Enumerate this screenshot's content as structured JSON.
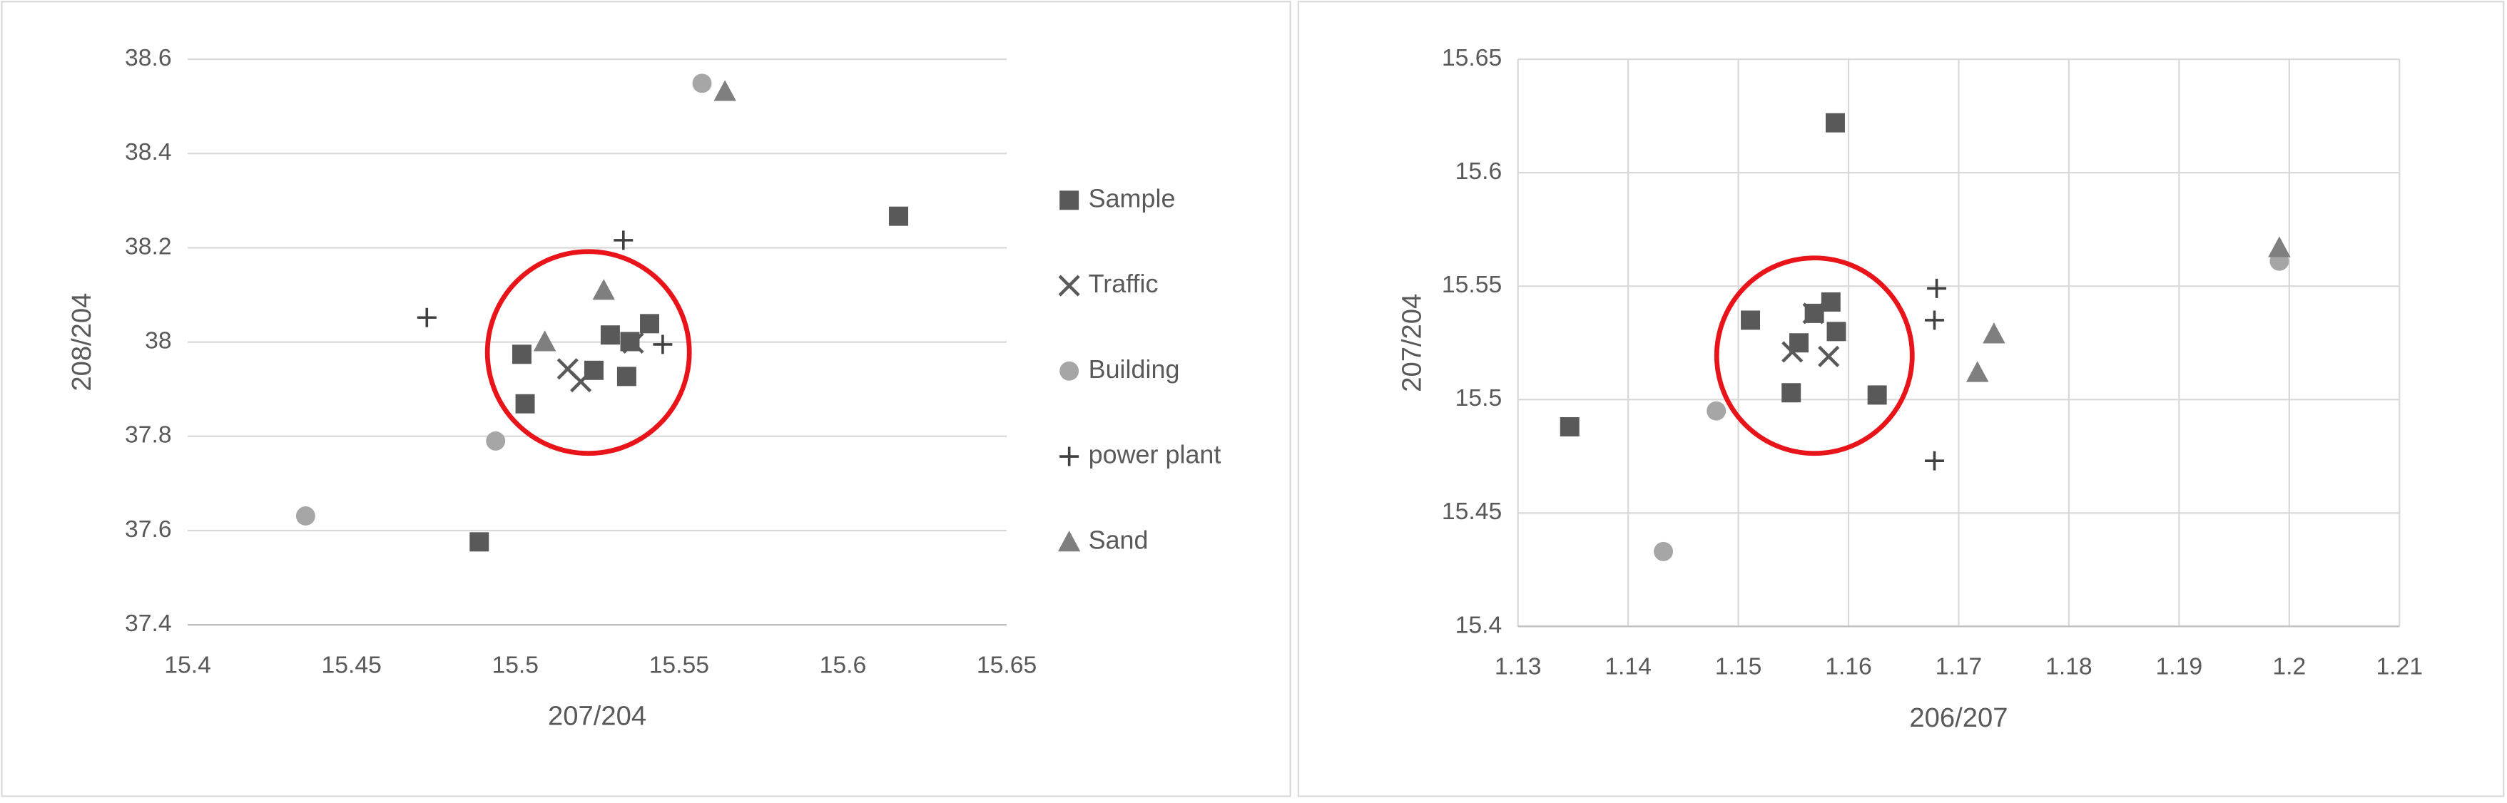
{
  "chart_data": [
    {
      "type": "scatter",
      "x_label": "207/204",
      "y_label": "208/204",
      "xlim": [
        15.4,
        15.65
      ],
      "xticks": [
        15.4,
        15.45,
        15.5,
        15.55,
        15.6,
        15.65
      ],
      "ylim": [
        37.4,
        38.6
      ],
      "yticks": [
        37.4,
        37.6,
        37.8,
        38,
        38.2,
        38.4,
        38.6
      ],
      "xgrid": false,
      "ygrid": true,
      "legend": "right",
      "series": [
        {
          "name": "Sample",
          "marker": "square",
          "color": "#595959",
          "x": [
            15.502,
            15.503,
            15.489,
            15.529,
            15.535,
            15.541,
            15.524,
            15.534,
            15.617
          ],
          "values": [
            37.974,
            37.869,
            37.576,
            38.015,
            38.001,
            38.039,
            37.94,
            37.927,
            38.267
          ]
        },
        {
          "name": "Traffic",
          "marker": "x",
          "color": "#595959",
          "x": [
            15.516,
            15.52,
            15.536
          ],
          "values": [
            37.943,
            37.916,
            37.998
          ]
        },
        {
          "name": "Building",
          "marker": "circle",
          "color": "#a6a6a6",
          "x": [
            15.557,
            15.494,
            15.436
          ],
          "values": [
            38.549,
            37.79,
            37.631
          ]
        },
        {
          "name": "power plant",
          "marker": "plus",
          "color": "#404040",
          "x": [
            15.473,
            15.533,
            15.545
          ],
          "values": [
            38.052,
            38.216,
            37.995
          ]
        },
        {
          "name": "Sand",
          "marker": "triangle",
          "color": "#7f7f7f",
          "x": [
            15.564,
            15.527,
            15.509
          ],
          "values": [
            38.532,
            38.11,
            38.001
          ]
        }
      ]
    },
    {
      "type": "scatter",
      "x_label": "206/207",
      "y_label": "207/204",
      "xlim": [
        1.13,
        1.21
      ],
      "xticks": [
        1.13,
        1.14,
        1.15,
        1.16,
        1.17,
        1.18,
        1.19,
        1.2,
        1.21
      ],
      "ylim": [
        15.4,
        15.65
      ],
      "yticks": [
        15.4,
        15.45,
        15.5,
        15.55,
        15.6,
        15.65
      ],
      "xgrid": true,
      "ygrid": true,
      "series": [
        {
          "marker": "square",
          "color": "#595959",
          "x": [
            1.1347,
            1.1511,
            1.1588,
            1.1584,
            1.1555,
            1.1589,
            1.1548,
            1.1626,
            1.1569
          ],
          "values": [
            15.488,
            15.535,
            15.622,
            15.543,
            15.525,
            15.53,
            15.503,
            15.502,
            15.538
          ]
        },
        {
          "marker": "x",
          "color": "#595959",
          "x": [
            1.1549,
            1.1582,
            1.1568
          ],
          "values": [
            15.521,
            15.519,
            15.538
          ]
        },
        {
          "marker": "circle",
          "color": "#a6a6a6",
          "x": [
            1.1432,
            1.148,
            1.1991
          ],
          "values": [
            15.433,
            15.495,
            15.561
          ]
        },
        {
          "marker": "plus",
          "color": "#404040",
          "x": [
            1.168,
            1.1678,
            1.1678
          ],
          "values": [
            15.549,
            15.535,
            15.473
          ]
        },
        {
          "marker": "triangle",
          "color": "#7f7f7f",
          "x": [
            1.1717,
            1.1732,
            1.1991
          ],
          "values": [
            15.512,
            15.529,
            15.567
          ]
        }
      ]
    }
  ]
}
